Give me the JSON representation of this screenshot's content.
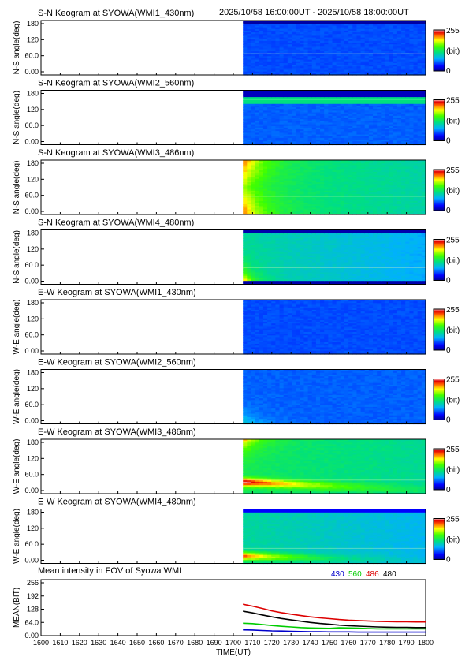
{
  "header": {
    "time_range": "2025/10/58 16:00:00UT - 2025/10/58 18:00:00UT"
  },
  "colors": {
    "series_430": "#0000cc",
    "series_560": "#00cc00",
    "series_486": "#dd0000",
    "series_480": "#000000"
  },
  "chart_data": [
    {
      "type": "heatmap",
      "title": "S-N Keogram at SYOWA(WMI1_430nm)",
      "ylabel": "N-S angle(deg)",
      "yticks": [
        "180",
        "120",
        "60.0",
        "0.00"
      ],
      "colorbar": {
        "max": "255",
        "unit": "(bit)",
        "min": "0"
      },
      "data_start": 1705,
      "base": 0.18,
      "glow": "none",
      "streak": 70
    },
    {
      "type": "heatmap",
      "title": "S-N Keogram at SYOWA(WMI2_560nm)",
      "ylabel": "N-S angle(deg)",
      "yticks": [
        "180",
        "120",
        "60.0",
        "0.00"
      ],
      "colorbar": {
        "max": "255",
        "unit": "(bit)",
        "min": "0"
      },
      "data_start": 1705,
      "base": 0.2,
      "glow": "top",
      "streak": 150
    },
    {
      "type": "heatmap",
      "title": "S-N Keogram at SYOWA(WMI3_486nm)",
      "ylabel": "N-S angle(deg)",
      "yticks": [
        "180",
        "120",
        "60.0",
        "0.00"
      ],
      "colorbar": {
        "max": "255",
        "unit": "(bit)",
        "min": "0"
      },
      "data_start": 1705,
      "base": 0.47,
      "glow": "topbottom",
      "streak": 60
    },
    {
      "type": "heatmap",
      "title": "S-N Keogram at SYOWA(WMI4_480nm)",
      "ylabel": "N-S angle(deg)",
      "yticks": [
        "180",
        "120",
        "60.0",
        "0.00"
      ],
      "colorbar": {
        "max": "255",
        "unit": "(bit)",
        "min": "0"
      },
      "data_start": 1705,
      "base": 0.4,
      "glow": "bottom_small",
      "streak": 55
    },
    {
      "type": "heatmap",
      "title": "E-W Keogram at SYOWA(WMI1_430nm)",
      "ylabel": "W-E angle(deg)",
      "yticks": [
        "180",
        "120",
        "60.0",
        "0.00"
      ],
      "colorbar": {
        "max": "255",
        "unit": "(bit)",
        "min": "0"
      },
      "data_start": 1705,
      "base": 0.18,
      "glow": "none",
      "streak": 0
    },
    {
      "type": "heatmap",
      "title": "E-W Keogram at SYOWA(WMI2_560nm)",
      "ylabel": "W-E angle(deg)",
      "yticks": [
        "180",
        "120",
        "60.0",
        "0.00"
      ],
      "colorbar": {
        "max": "255",
        "unit": "(bit)",
        "min": "0"
      },
      "data_start": 1705,
      "base": 0.2,
      "glow": "bottom_faint",
      "streak": 0
    },
    {
      "type": "heatmap",
      "title": "E-W Keogram at SYOWA(WMI3_486nm)",
      "ylabel": "W-E angle(deg)",
      "yticks": [
        "180",
        "120",
        "60.0",
        "0.00"
      ],
      "colorbar": {
        "max": "255",
        "unit": "(bit)",
        "min": "0"
      },
      "data_start": 1705,
      "base": 0.47,
      "glow": "arc",
      "streak": 45
    },
    {
      "type": "heatmap",
      "title": "E-W Keogram at SYOWA(WMI4_480nm)",
      "ylabel": "W-E angle(deg)",
      "yticks": [
        "180",
        "120",
        "60.0",
        "0.00"
      ],
      "colorbar": {
        "max": "255",
        "unit": "(bit)",
        "min": "0"
      },
      "data_start": 1705,
      "base": 0.4,
      "glow": "bottom_arc",
      "streak": 50
    },
    {
      "type": "line",
      "title": "Mean intensity in FOV of Syowa WMI",
      "xlabel": "TIME(UT)",
      "ylabel": "MEAN(BIT)",
      "ylim": [
        0,
        256
      ],
      "xlim": [
        1600,
        1800
      ],
      "yticks": [
        "256",
        "192",
        "128",
        "64.0",
        "0.00"
      ],
      "xticks": [
        "1600",
        "1610",
        "1620",
        "1630",
        "1640",
        "1650",
        "1660",
        "1670",
        "1680",
        "1690",
        "1700",
        "1710",
        "1720",
        "1730",
        "1740",
        "1750",
        "1760",
        "1770",
        "1780",
        "1790",
        "1800"
      ],
      "x": [
        1705,
        1710,
        1715,
        1720,
        1725,
        1730,
        1735,
        1740,
        1745,
        1750,
        1755,
        1760,
        1765,
        1770,
        1775,
        1780,
        1785,
        1790,
        1795,
        1800
      ],
      "series": [
        {
          "name": "430",
          "color": "#0000cc",
          "values": [
            28,
            27,
            25,
            23,
            22,
            21,
            20,
            19,
            19,
            18,
            18,
            18,
            17,
            17,
            17,
            17,
            17,
            17,
            17,
            17
          ]
        },
        {
          "name": "560",
          "color": "#00cc00",
          "values": [
            60,
            58,
            54,
            49,
            45,
            42,
            39,
            37,
            36,
            35,
            38,
            37,
            36,
            34,
            33,
            33,
            33,
            33,
            33,
            33
          ]
        },
        {
          "name": "486",
          "color": "#dd0000",
          "values": [
            152,
            143,
            132,
            120,
            111,
            104,
            97,
            91,
            86,
            82,
            78,
            75,
            73,
            71,
            69,
            68,
            67,
            67,
            66,
            66
          ]
        },
        {
          "name": "480",
          "color": "#000000",
          "values": [
            118,
            110,
            100,
            91,
            83,
            76,
            70,
            64,
            59,
            55,
            51,
            48,
            46,
            44,
            42,
            41,
            40,
            40,
            39,
            39
          ]
        }
      ]
    }
  ]
}
